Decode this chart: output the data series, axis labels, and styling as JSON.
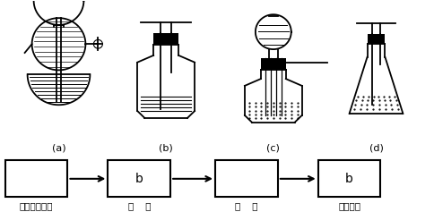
{
  "apparatus_labels": [
    "(a)",
    "(b)",
    "(c)",
    "(d)"
  ],
  "box_labels": [
    "",
    "b",
    "",
    "b"
  ],
  "below_labels": [
    "（电石、水）",
    "（    ）",
    "（    ）",
    "（溢水）"
  ],
  "line_color": "#000000",
  "bg_color": "#ffffff"
}
